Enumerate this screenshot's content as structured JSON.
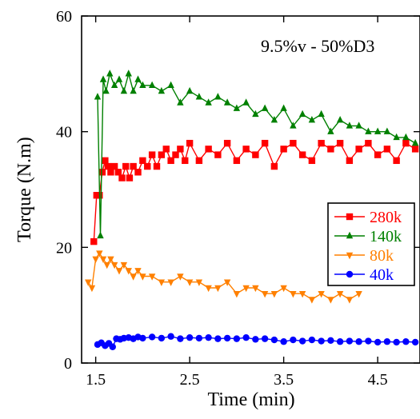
{
  "chart_data": {
    "type": "line",
    "annotation": "9.5%v - 50%D3",
    "xlabel": "Time (min)",
    "ylabel": "Torque (N.m)",
    "xlim": [
      1.35,
      4.95
    ],
    "ylim": [
      0,
      60
    ],
    "xticks": [
      1.5,
      2.5,
      3.5,
      4.5
    ],
    "xtick_labels": [
      "1.5",
      "2.5",
      "3.5",
      "4.5"
    ],
    "yticks": [
      0,
      20,
      40,
      60
    ],
    "ytick_labels": [
      "0",
      "20",
      "40",
      "60"
    ],
    "grid": false,
    "legend_position": "right",
    "series": [
      {
        "name": "280k",
        "color": "#ff0000",
        "marker": "square",
        "x": [
          1.48,
          1.51,
          1.54,
          1.57,
          1.6,
          1.63,
          1.66,
          1.7,
          1.74,
          1.78,
          1.82,
          1.86,
          1.9,
          1.95,
          2.0,
          2.05,
          2.1,
          2.15,
          2.2,
          2.25,
          2.3,
          2.35,
          2.4,
          2.45,
          2.5,
          2.6,
          2.7,
          2.8,
          2.9,
          3.0,
          3.1,
          3.2,
          3.3,
          3.4,
          3.5,
          3.6,
          3.7,
          3.8,
          3.9,
          4.0,
          4.1,
          4.2,
          4.3,
          4.4,
          4.5,
          4.6,
          4.7,
          4.8,
          4.9
        ],
        "y": [
          21,
          29,
          29,
          33,
          35,
          34,
          33,
          34,
          33,
          32,
          34,
          32,
          34,
          33,
          35,
          34,
          36,
          34,
          36,
          37,
          35,
          36,
          37,
          35,
          38,
          35,
          37,
          36,
          38,
          35,
          37,
          36,
          38,
          34,
          37,
          38,
          36,
          35,
          38,
          37,
          38,
          35,
          37,
          38,
          36,
          37,
          35,
          38,
          37
        ]
      },
      {
        "name": "140k",
        "color": "#008000",
        "marker": "triangle-up",
        "x": [
          1.52,
          1.55,
          1.58,
          1.61,
          1.65,
          1.7,
          1.75,
          1.8,
          1.85,
          1.9,
          1.95,
          2.0,
          2.1,
          2.2,
          2.3,
          2.4,
          2.5,
          2.6,
          2.7,
          2.8,
          2.9,
          3.0,
          3.1,
          3.2,
          3.3,
          3.4,
          3.5,
          3.6,
          3.7,
          3.8,
          3.9,
          4.0,
          4.1,
          4.2,
          4.3,
          4.4,
          4.5,
          4.6,
          4.7,
          4.8,
          4.9
        ],
        "y": [
          46,
          22,
          49,
          47,
          50,
          48,
          49,
          47,
          50,
          47,
          49,
          48,
          48,
          47,
          48,
          45,
          47,
          46,
          45,
          46,
          45,
          44,
          45,
          43,
          44,
          42,
          44,
          41,
          43,
          42,
          43,
          40,
          42,
          41,
          41,
          40,
          40,
          40,
          39,
          39,
          38
        ]
      },
      {
        "name": "80k",
        "color": "#ff8000",
        "marker": "triangle-down",
        "x": [
          1.42,
          1.46,
          1.5,
          1.54,
          1.58,
          1.62,
          1.66,
          1.7,
          1.75,
          1.8,
          1.85,
          1.9,
          1.95,
          2.0,
          2.1,
          2.2,
          2.3,
          2.4,
          2.5,
          2.6,
          2.7,
          2.8,
          2.9,
          3.0,
          3.1,
          3.2,
          3.3,
          3.4,
          3.5,
          3.6,
          3.7,
          3.8,
          3.9,
          4.0,
          4.1,
          4.2,
          4.3
        ],
        "y": [
          14,
          13,
          18,
          19,
          18,
          17,
          18,
          17,
          16,
          17,
          16,
          15,
          16,
          15,
          15,
          14,
          14,
          15,
          14,
          14,
          13,
          13,
          14,
          12,
          13,
          13,
          12,
          12,
          13,
          12,
          12,
          11,
          12,
          11,
          12,
          11,
          12
        ]
      },
      {
        "name": "40k",
        "color": "#0000ff",
        "marker": "circle",
        "x": [
          1.52,
          1.56,
          1.6,
          1.64,
          1.68,
          1.72,
          1.76,
          1.8,
          1.85,
          1.9,
          1.95,
          2.0,
          2.1,
          2.2,
          2.3,
          2.4,
          2.5,
          2.6,
          2.7,
          2.8,
          2.9,
          3.0,
          3.1,
          3.2,
          3.3,
          3.4,
          3.5,
          3.6,
          3.7,
          3.8,
          3.9,
          4.0,
          4.1,
          4.2,
          4.3,
          4.4,
          4.5,
          4.6,
          4.7,
          4.8,
          4.9
        ],
        "y": [
          3.2,
          3.5,
          3.0,
          3.4,
          2.8,
          4.2,
          4.1,
          4.3,
          4.4,
          4.2,
          4.5,
          4.3,
          4.5,
          4.3,
          4.6,
          4.2,
          4.4,
          4.3,
          4.4,
          4.2,
          4.3,
          4.2,
          4.4,
          4.1,
          4.2,
          4.0,
          3.7,
          4.0,
          3.8,
          4.0,
          3.8,
          3.9,
          3.7,
          3.8,
          3.7,
          3.8,
          3.6,
          3.7,
          3.6,
          3.7,
          3.6
        ]
      }
    ]
  }
}
